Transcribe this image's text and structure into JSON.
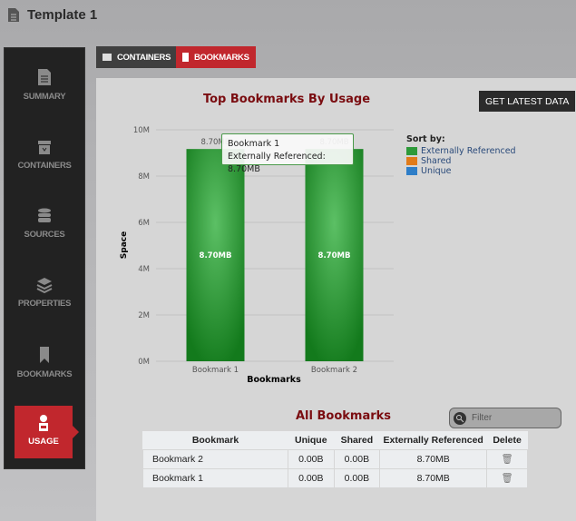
{
  "header": {
    "title": "Template 1"
  },
  "sidebar": {
    "items": [
      {
        "label": "SUMMARY"
      },
      {
        "label": "CONTAINERS"
      },
      {
        "label": "SOURCES"
      },
      {
        "label": "PROPERTIES"
      },
      {
        "label": "BOOKMARKS"
      },
      {
        "label": "USAGE",
        "active": true
      }
    ]
  },
  "tabs": [
    {
      "label": "CONTAINERS"
    },
    {
      "label": "BOOKMARKS",
      "active": true
    }
  ],
  "get_data_label": "GET LATEST DATA",
  "chart_data": {
    "type": "bar",
    "title": "Top Bookmarks By Usage",
    "xlabel": "Bookmarks",
    "ylabel": "Space",
    "categories": [
      "Bookmark 1",
      "Bookmark 2"
    ],
    "series": [
      {
        "name": "Externally Referenced",
        "values": [
          8.7,
          8.7
        ],
        "labels": [
          "8.70MB",
          "8.70MB"
        ],
        "color": "#2e9a3a"
      },
      {
        "name": "Shared",
        "values": [
          0,
          0
        ],
        "color": "#e07b1a"
      },
      {
        "name": "Unique",
        "values": [
          0,
          0
        ],
        "color": "#2e7ec8"
      }
    ],
    "yticks": [
      "0M",
      "2M",
      "4M",
      "6M",
      "8M",
      "10M"
    ],
    "ylim": [
      0,
      10
    ],
    "grid": true,
    "legend_title": "Sort by:",
    "legend_position": "right",
    "tooltip": {
      "title": "Bookmark 1",
      "text": "Externally Referenced: 8.70MB"
    }
  },
  "table": {
    "title": "All Bookmarks",
    "filter_placeholder": "Filter",
    "columns": [
      "Bookmark",
      "Unique",
      "Shared",
      "Externally Referenced",
      "Delete"
    ],
    "rows": [
      [
        "Bookmark 2",
        "0.00B",
        "0.00B",
        "8.70MB"
      ],
      [
        "Bookmark 1",
        "0.00B",
        "0.00B",
        "8.70MB"
      ]
    ]
  },
  "colors": {
    "accent": "#c1272d",
    "title": "#7a0c10"
  }
}
